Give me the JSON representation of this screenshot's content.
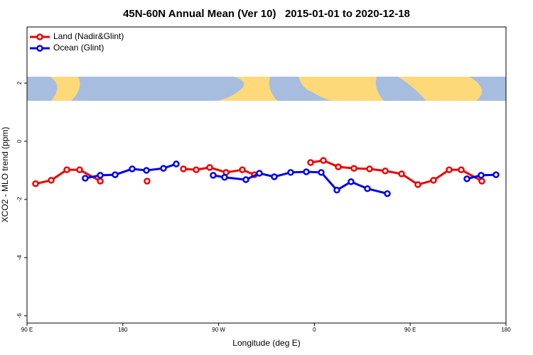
{
  "chart_data": {
    "type": "line",
    "title": "45N-60N Annual Mean (Ver 10)   2015-01-01 to 2020-12-18",
    "xlabel": "Longitude (deg E)",
    "ylabel": "XCO2 - MLO trend (ppm)",
    "xlim": [
      90,
      540
    ],
    "xticks": [
      {
        "value": 90,
        "label": "90 E"
      },
      180,
      {
        "value": 270,
        "label": "90 W"
      },
      {
        "value": 360,
        "label": "0"
      },
      {
        "value": 450,
        "label": "90 E"
      },
      {
        "value": 540,
        "label": "180"
      }
    ],
    "ylim": [
      -6.25,
      3.93
    ],
    "yticks": [
      -6,
      -4,
      -2,
      0,
      2
    ],
    "legend": "upper left",
    "series": [
      {
        "name": "Land (Nadir&Glint)",
        "color": "#ee0000",
        "x": [
          98,
          112.7,
          127.4,
          139.4,
          158.8,
          null,
          202.8,
          null,
          236.9,
          248.9,
          261.6,
          277,
          292.3,
          303.6,
          null,
          356.4,
          368.4,
          382.4,
          397.1,
          411.8,
          426.5,
          441.9,
          457.2,
          471.9,
          486.6,
          497.9,
          517.3
        ],
        "values": [
          -1.46,
          -1.34,
          -0.98,
          -0.98,
          -1.37,
          null,
          -1.37,
          null,
          -0.95,
          -0.98,
          -0.9,
          -1.07,
          -0.98,
          -1.15,
          null,
          -0.73,
          -0.66,
          -0.88,
          -0.93,
          -0.95,
          -1.02,
          -1.12,
          -1.49,
          -1.34,
          -0.98,
          -0.98,
          -1.37
        ]
      },
      {
        "name": "Ocean (Glint)",
        "color": "#0000ee",
        "x": [
          144.7,
          158.8,
          172.8,
          188.8,
          202.2,
          218.2,
          230.2,
          null,
          264.9,
          275.6,
          295.6,
          308.3,
          322.3,
          337.7,
          352.4,
          366.4,
          381.1,
          394.4,
          409.8,
          428.5,
          null,
          503.3,
          516.6,
          530.6
        ],
        "values": [
          -1.27,
          -1.17,
          -1.15,
          -0.95,
          -1.0,
          -0.93,
          -0.78,
          null,
          -1.17,
          -1.24,
          -1.32,
          -1.1,
          -1.22,
          -1.07,
          -1.05,
          -1.07,
          -1.68,
          -1.39,
          -1.63,
          -1.8,
          null,
          -1.29,
          -1.17,
          -1.15
        ]
      }
    ]
  }
}
